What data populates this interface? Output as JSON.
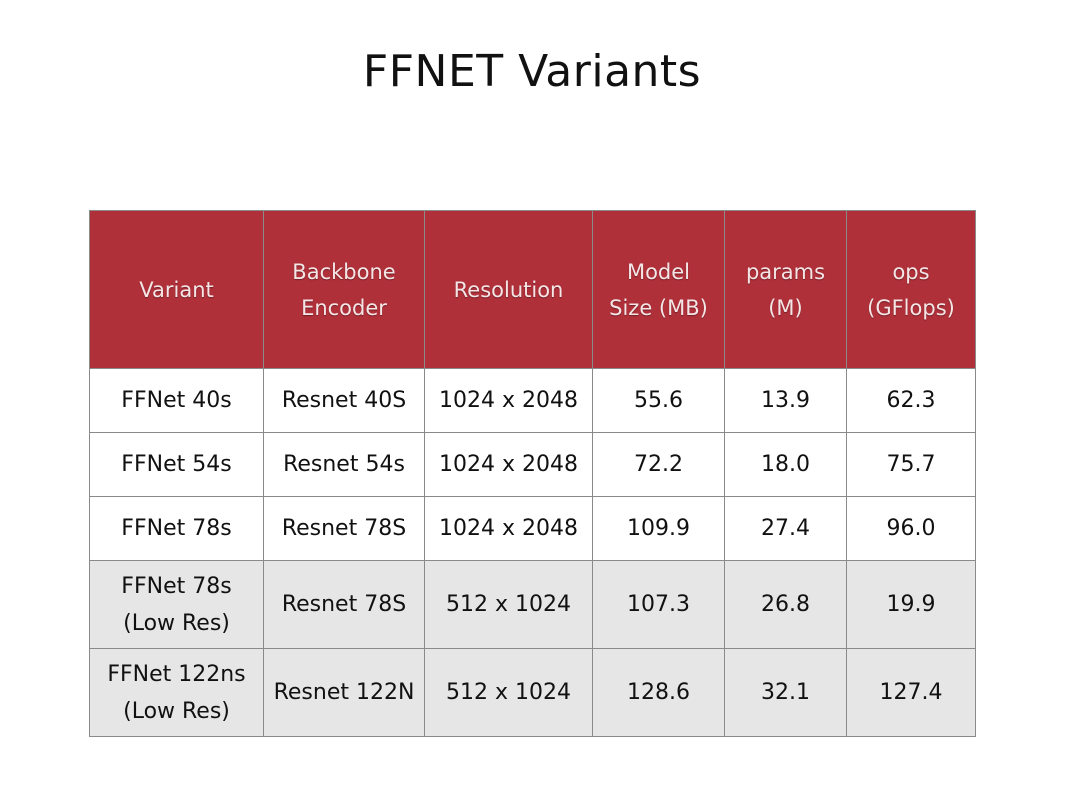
{
  "page": {
    "title": "FFNET Variants"
  },
  "table": {
    "header": [
      {
        "key": "variant",
        "lines": [
          "Variant"
        ]
      },
      {
        "key": "backbone",
        "lines": [
          "Backbone",
          "Encoder"
        ]
      },
      {
        "key": "resolution",
        "lines": [
          "Resolution"
        ]
      },
      {
        "key": "model_size",
        "lines": [
          "Model",
          "Size (MB)"
        ]
      },
      {
        "key": "params",
        "lines": [
          "params",
          "(M)"
        ]
      },
      {
        "key": "ops",
        "lines": [
          "ops",
          "(GFlops)"
        ]
      }
    ],
    "rows": [
      {
        "shaded": false,
        "variant": [
          "FFNet 40s"
        ],
        "backbone": "Resnet 40S",
        "resolution": "1024 x 2048",
        "model_size": "55.6",
        "params": "13.9",
        "ops": "62.3"
      },
      {
        "shaded": false,
        "variant": [
          "FFNet 54s"
        ],
        "backbone": "Resnet 54s",
        "resolution": "1024 x 2048",
        "model_size": "72.2",
        "params": "18.0",
        "ops": "75.7"
      },
      {
        "shaded": false,
        "variant": [
          "FFNet 78s"
        ],
        "backbone": "Resnet 78S",
        "resolution": "1024 x 2048",
        "model_size": "109.9",
        "params": "27.4",
        "ops": "96.0"
      },
      {
        "shaded": true,
        "variant": [
          "FFNet 78s",
          "(Low Res)"
        ],
        "backbone": "Resnet 78S",
        "resolution": "512 x 1024",
        "model_size": "107.3",
        "params": "26.8",
        "ops": "19.9"
      },
      {
        "shaded": true,
        "variant": [
          "FFNet 122ns",
          "(Low Res)"
        ],
        "backbone": "Resnet 122N",
        "resolution": "512 x 1024",
        "model_size": "128.6",
        "params": "32.1",
        "ops": "127.4"
      }
    ]
  },
  "colors": {
    "header_background": "#b0303a",
    "header_text": "#f4e6e6",
    "shaded_row": "#e6e6e6",
    "grid_line": "#8a8a8a"
  }
}
